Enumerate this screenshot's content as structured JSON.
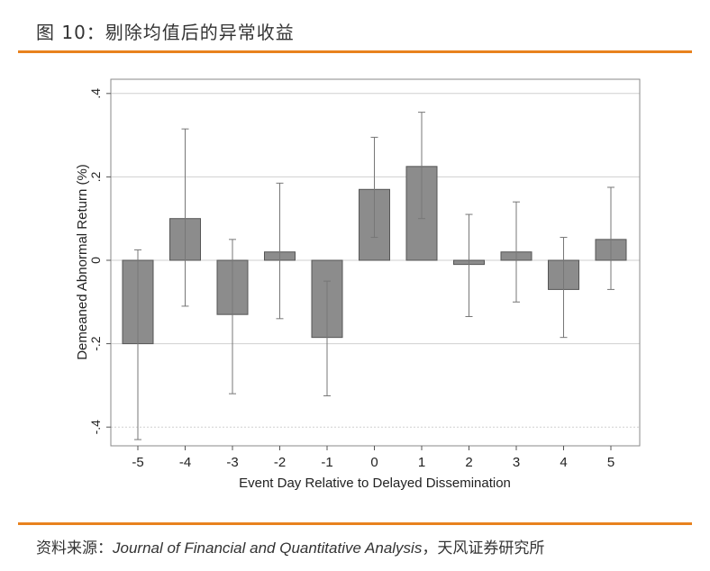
{
  "figure": {
    "title": "图 10：剔除均值后的异常收益",
    "source_label": "资料来源：",
    "source_journal": "Journal of Financial and Quantitative Analysis",
    "source_sep": "，",
    "source_org": "天风证券研究所"
  },
  "chart_data": {
    "type": "bar",
    "title": "图 10：剔除均值后的异常收益",
    "xlabel": "Event Day Relative to Delayed Dissemination",
    "ylabel": "Demeaned Abnormal Return (%)",
    "ylim": [
      -0.45,
      0.43
    ],
    "yticks": [
      0.4,
      0.2,
      0,
      -0.2,
      -0.4
    ],
    "ytick_labels": [
      ".4",
      ".2",
      "0",
      "-.2",
      "-.4"
    ],
    "categories": [
      "-5",
      "-4",
      "-3",
      "-2",
      "-1",
      "0",
      "1",
      "2",
      "3",
      "4",
      "5"
    ],
    "values": [
      -0.2,
      0.1,
      -0.13,
      0.02,
      -0.185,
      0.17,
      0.225,
      -0.01,
      0.02,
      -0.07,
      0.05
    ],
    "error_high": [
      0.025,
      0.315,
      0.05,
      0.185,
      -0.05,
      0.295,
      0.355,
      0.11,
      0.14,
      0.055,
      0.175
    ],
    "error_low": [
      -0.43,
      -0.11,
      -0.32,
      -0.14,
      -0.325,
      0.055,
      0.1,
      -0.135,
      -0.1,
      -0.185,
      -0.07
    ],
    "grid": true
  }
}
